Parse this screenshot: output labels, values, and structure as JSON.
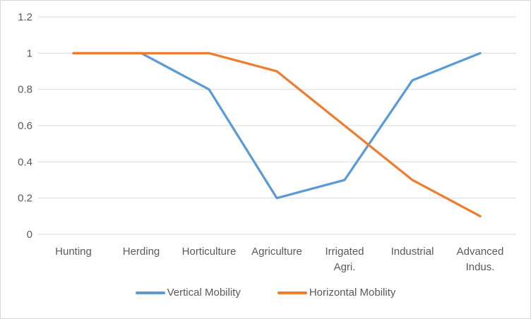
{
  "chart_data": {
    "type": "line",
    "categories": [
      "Hunting",
      "Herding",
      "Horticulture",
      "Agriculture",
      "Irrigated Agri.",
      "Industrial",
      "Advanced Indus."
    ],
    "category_label_lines": [
      [
        "Hunting"
      ],
      [
        "Herding"
      ],
      [
        "Horticulture"
      ],
      [
        "Agriculture"
      ],
      [
        "Irrigated",
        "Agri."
      ],
      [
        "Industrial"
      ],
      [
        "Advanced",
        "Indus."
      ]
    ],
    "series": [
      {
        "name": "Vertical Mobility",
        "color": "#5B9BD5",
        "values": [
          1,
          1,
          0.8,
          0.2,
          0.3,
          0.85,
          1
        ]
      },
      {
        "name": "Horizontal Mobility",
        "color": "#ED7D31",
        "values": [
          1,
          1,
          1,
          0.9,
          0.6,
          0.3,
          0.1
        ]
      }
    ],
    "y_ticks": [
      "0",
      "0.2",
      "0.4",
      "0.6",
      "0.8",
      "1",
      "1.2"
    ],
    "ylim": [
      0,
      1.2
    ],
    "title": "",
    "xlabel": "",
    "ylabel": "",
    "grid": true,
    "legend_position": "bottom",
    "grid_color": "#D9D9D9",
    "label_color": "#595959"
  }
}
